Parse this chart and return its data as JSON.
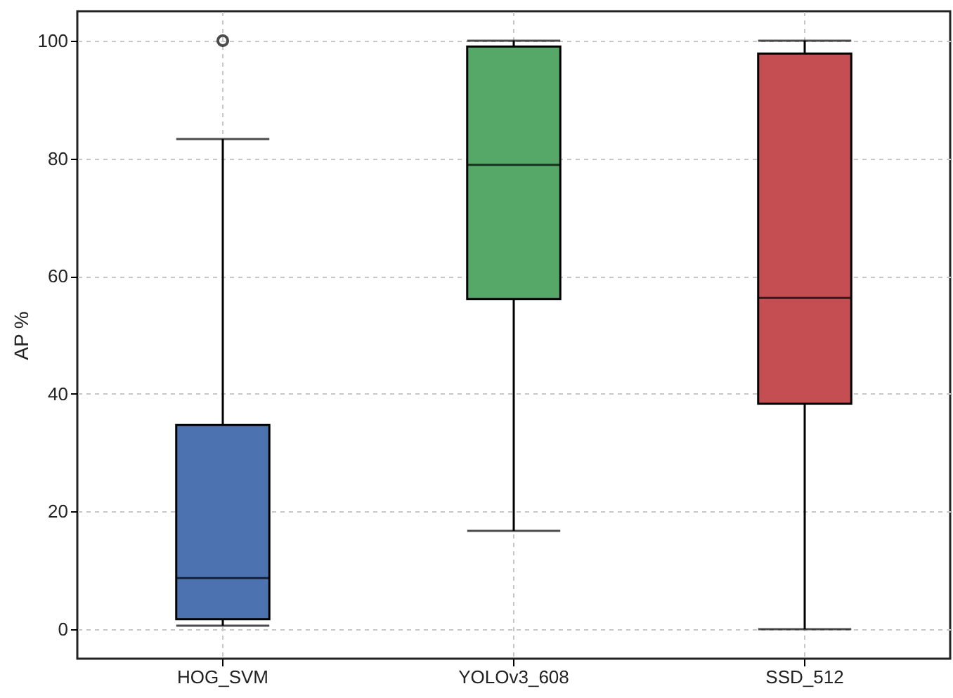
{
  "chart_data": {
    "type": "box",
    "ylabel": "AP %",
    "categories": [
      "HOG_SVM",
      "YOLOv3_608",
      "SSD_512"
    ],
    "colors": [
      "#4c72b0",
      "#55a868",
      "#c44e52"
    ],
    "boxes": [
      {
        "low": 0.6,
        "q1": 1.7,
        "median": 8.7,
        "q3": 34.7,
        "high": 83.3,
        "outliers": [
          100
        ]
      },
      {
        "low": 16.7,
        "q1": 56.1,
        "median": 78.9,
        "q3": 99.0,
        "high": 100
      },
      {
        "low": 0,
        "q1": 38.3,
        "median": 56.3,
        "q3": 97.8,
        "high": 100
      }
    ],
    "ylim": [
      -5,
      105
    ],
    "yticks": [
      0,
      20,
      40,
      60,
      80,
      100
    ],
    "grid": true
  }
}
